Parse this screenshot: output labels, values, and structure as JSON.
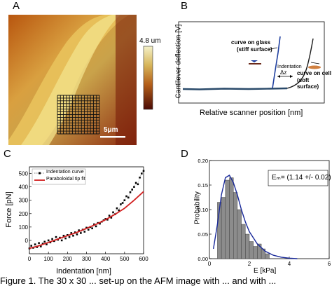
{
  "caption": "Figure 1. The 30 x 30 ... set-up on the AFM image with ... and with ...",
  "panelA": {
    "letter": "A",
    "colorbar_max": "4.8 um",
    "scalebar": "5μm"
  },
  "panelB": {
    "letter": "B",
    "ylabel": "Cantilever deflection [V]",
    "xlabel": "Relative scanner position [nm]",
    "label_glass_1": "curve on glass",
    "label_glass_2": "(stiff surface)",
    "label_cell_1": "curve on cell",
    "label_cell_2": "(soft surface)",
    "label_indentation": "Indentation",
    "label_dz": "Δz"
  },
  "panelC": {
    "letter": "C",
    "chart_data": {
      "type": "scatter",
      "xlabel": "Indentation [nm]",
      "ylabel": "Force [pN]",
      "xlim": [
        0,
        600
      ],
      "ylim": [
        -100,
        550
      ],
      "xticks": [
        0,
        100,
        200,
        300,
        400,
        500,
        600
      ],
      "yticks": [
        0,
        100,
        200,
        300,
        400,
        500
      ],
      "legend": [
        "Indentation curve",
        "Paraboloidal tip fit"
      ],
      "legend_position": "top-left",
      "series": [
        {
          "name": "Indentation curve",
          "x": [
            0,
            10,
            20,
            30,
            40,
            50,
            60,
            70,
            80,
            90,
            100,
            110,
            120,
            130,
            140,
            150,
            160,
            170,
            180,
            190,
            200,
            210,
            220,
            230,
            240,
            250,
            260,
            270,
            280,
            290,
            300,
            310,
            320,
            330,
            340,
            350,
            360,
            370,
            380,
            390,
            400,
            410,
            420,
            430,
            440,
            450,
            460,
            470,
            480,
            490,
            500,
            510,
            520,
            530,
            540,
            550,
            560,
            570,
            580,
            590,
            600
          ],
          "y": [
            -60,
            -40,
            -55,
            -30,
            -50,
            -20,
            -45,
            -25,
            -10,
            -30,
            0,
            -15,
            10,
            -5,
            25,
            5,
            20,
            0,
            35,
            15,
            40,
            25,
            55,
            35,
            60,
            45,
            75,
            55,
            80,
            65,
            95,
            80,
            100,
            90,
            120,
            105,
            130,
            125,
            140,
            150,
            160,
            155,
            185,
            170,
            210,
            195,
            240,
            225,
            270,
            280,
            300,
            330,
            320,
            360,
            380,
            400,
            430,
            420,
            470,
            500,
            520
          ]
        },
        {
          "name": "Paraboloidal tip fit",
          "x": [
            0,
            50,
            100,
            150,
            200,
            250,
            300,
            350,
            400,
            450,
            500,
            550,
            600
          ],
          "y": [
            -60,
            -40,
            -15,
            10,
            35,
            60,
            90,
            120,
            155,
            195,
            240,
            300,
            365
          ]
        }
      ]
    }
  },
  "panelD": {
    "letter": "D",
    "chart_data": {
      "type": "bar",
      "xlabel": "E [kPa]",
      "ylabel": "Probability",
      "xlim": [
        0,
        6
      ],
      "ylim": [
        0,
        0.2
      ],
      "xticks": [
        0,
        2,
        4,
        6
      ],
      "yticks": [
        0.0,
        0.05,
        0.1,
        0.15,
        0.2
      ],
      "annotation": "Eₘ= (1.14 +/- 0.02) kPa",
      "bin_width": 0.2,
      "bin_starts": [
        0.4,
        0.6,
        0.8,
        1.0,
        1.2,
        1.4,
        1.6,
        1.8,
        2.0,
        2.2,
        2.4,
        2.6,
        2.8
      ],
      "values": [
        0.115,
        0.125,
        0.16,
        0.165,
        0.135,
        0.1,
        0.07,
        0.05,
        0.035,
        0.025,
        0.03,
        0.02,
        0.01
      ],
      "fit_curve": {
        "x": [
          0.2,
          0.4,
          0.6,
          0.8,
          1.0,
          1.2,
          1.4,
          1.6,
          1.8,
          2.0,
          2.4,
          2.8,
          3.2,
          3.6,
          4.0,
          4.4
        ],
        "y": [
          0.02,
          0.07,
          0.13,
          0.165,
          0.17,
          0.155,
          0.13,
          0.1,
          0.075,
          0.055,
          0.03,
          0.015,
          0.007,
          0.003,
          0.001,
          0.0
        ]
      }
    }
  }
}
